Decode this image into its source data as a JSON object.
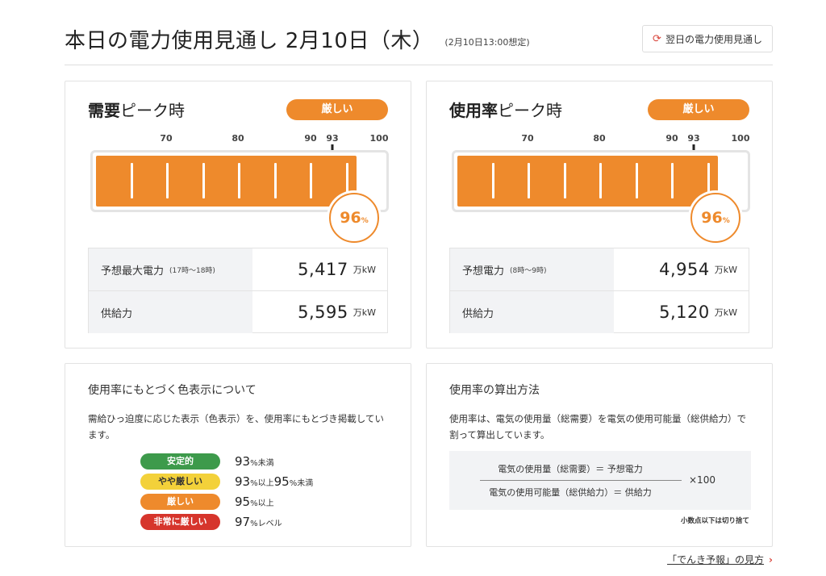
{
  "header": {
    "title": "本日の電力使用見通し 2月10日（木）",
    "subnote": "(2月10日13:00想定)",
    "next_button": {
      "icon": "refresh-icon",
      "label": "翌日の電力使用見通し"
    }
  },
  "scale": {
    "labels": [
      "70",
      "80",
      "90",
      "93",
      "100"
    ]
  },
  "colors": {
    "orange": "#ee8a2c",
    "green": "#3d9a4b",
    "yellow": "#f3d13a",
    "red": "#d6352c",
    "accent_red": "#d9463d"
  },
  "demand_peak": {
    "title_bold": "需要",
    "title_rest": "ピーク時",
    "status": "厳しい",
    "usage_percent": 96,
    "percent_num": "96",
    "percent_unit": "%",
    "rows": [
      {
        "label": "予想最大電力",
        "sub": "(17時～18時)",
        "value": "5,417",
        "unit": "万kW"
      },
      {
        "label": "供給力",
        "sub": "",
        "value": "5,595",
        "unit": "万kW"
      }
    ]
  },
  "usage_peak": {
    "title_bold": "使用率",
    "title_rest": "ピーク時",
    "status": "厳しい",
    "usage_percent": 96,
    "percent_num": "96",
    "percent_unit": "%",
    "rows": [
      {
        "label": "予想電力",
        "sub": "(8時～9時)",
        "value": "4,954",
        "unit": "万kW"
      },
      {
        "label": "供給力",
        "sub": "",
        "value": "5,120",
        "unit": "万kW"
      }
    ]
  },
  "color_legend": {
    "title": "使用率にもとづく色表示について",
    "text": "需給ひっ迫度に応じた表示（色表示）を、使用率にもとづき掲載しています。",
    "items": [
      {
        "label": "安定的",
        "v1": "93",
        "u1": "%未満",
        "v2": "",
        "u2": ""
      },
      {
        "label": "やや厳しい",
        "v1": "93",
        "u1": "%以上",
        "v2": "95",
        "u2": "%未満"
      },
      {
        "label": "厳しい",
        "v1": "95",
        "u1": "%以上",
        "v2": "",
        "u2": ""
      },
      {
        "label": "非常に厳しい",
        "v1": "97",
        "u1": "%レベル",
        "v2": "",
        "u2": ""
      }
    ]
  },
  "calc_method": {
    "title": "使用率の算出方法",
    "text": "使用率は、電気の使用量（総需要）を電気の使用可能量（総供給力）で割って算出しています。",
    "numerator": "電気の使用量（総需要）＝ 予想電力",
    "denominator": "電気の使用可能量（総供給力）＝ 供給力",
    "multiplier": "×100",
    "note": "小数点以下は切り捨て"
  },
  "footer": {
    "link_label": "「でんき予報」の見方",
    "chevron": "›"
  }
}
